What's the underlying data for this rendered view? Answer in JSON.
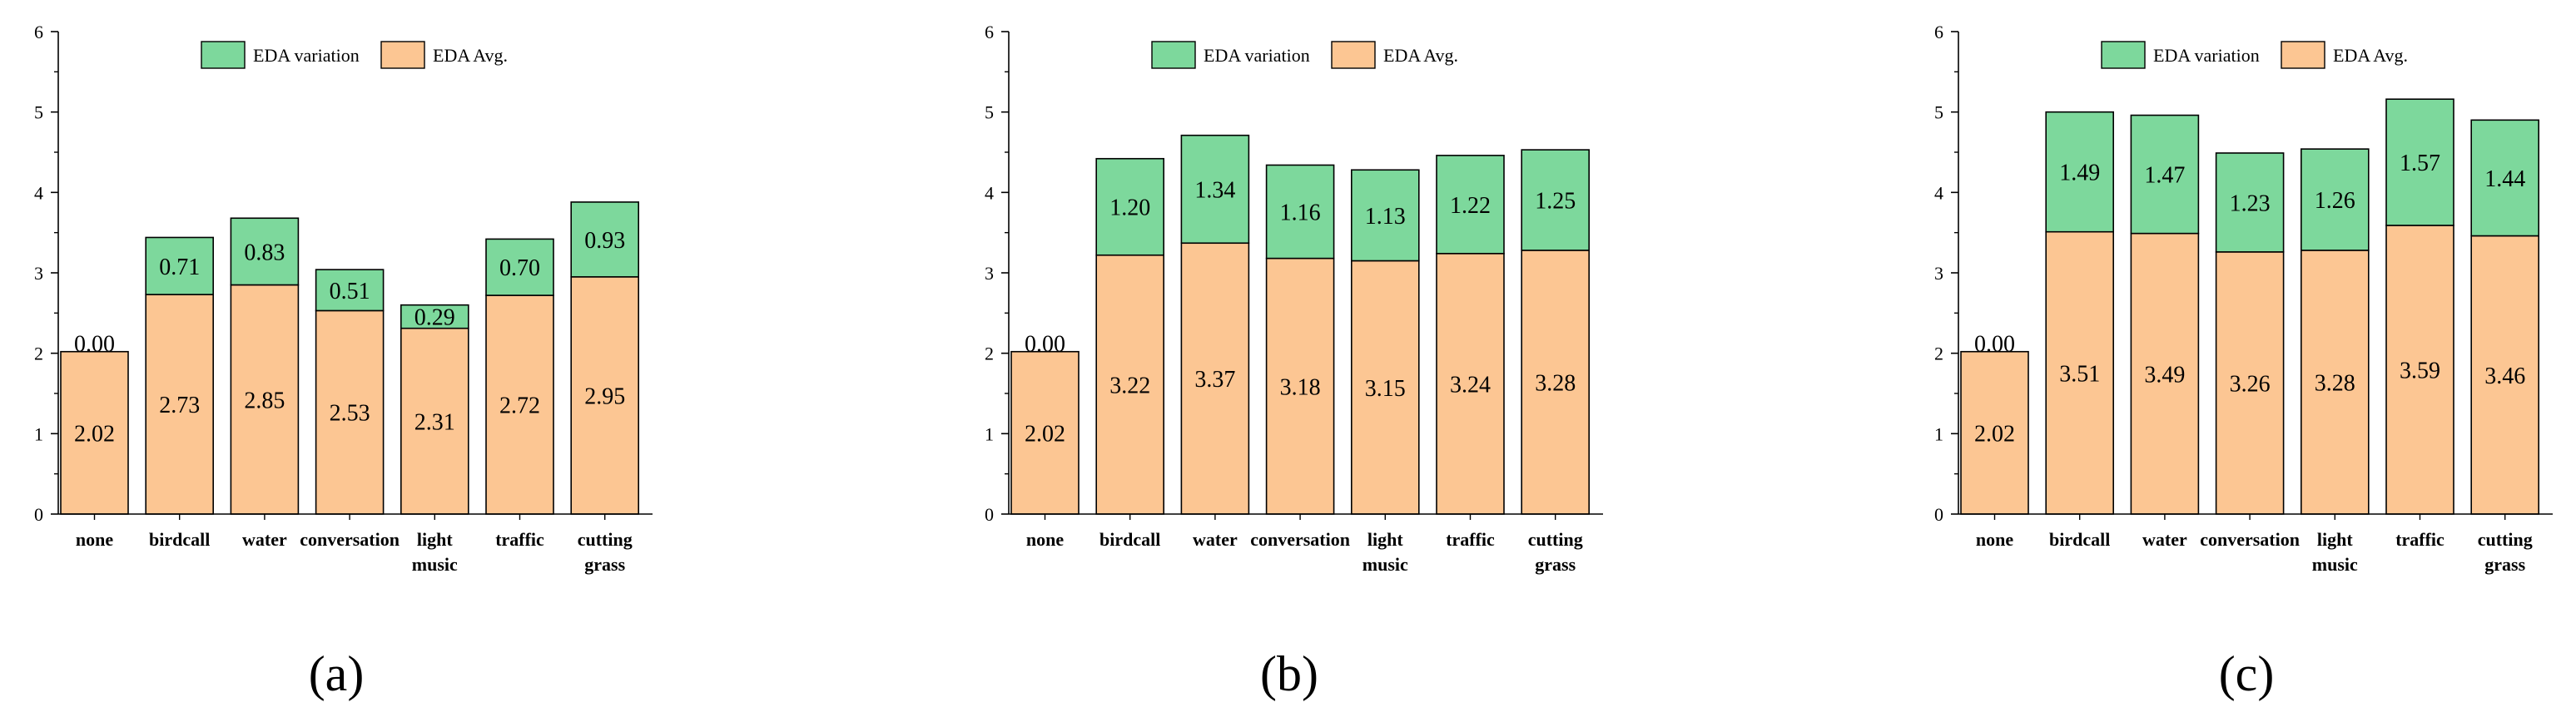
{
  "colors": {
    "avg": "#FCC693",
    "variation": "#7DD89C",
    "stroke": "#000000"
  },
  "chart_data": [
    {
      "type": "bar",
      "stacked": true,
      "panel_label": "(a)",
      "categories": [
        "none",
        "birdcall",
        "water",
        "conversation",
        "light music",
        "traffic",
        "cutting grass"
      ],
      "category_lines": [
        [
          "none"
        ],
        [
          "birdcall"
        ],
        [
          "water"
        ],
        [
          "conversation"
        ],
        [
          "light",
          "music"
        ],
        [
          "traffic"
        ],
        [
          "cutting",
          "grass"
        ]
      ],
      "series": [
        {
          "name": "EDA Avg.",
          "values": [
            2.02,
            2.73,
            2.85,
            2.53,
            2.31,
            2.72,
            2.95
          ],
          "labels": [
            "2.02",
            "2.73",
            "2.85",
            "2.53",
            "2.31",
            "2.72",
            "2.95"
          ]
        },
        {
          "name": "EDA variation",
          "values": [
            0.0,
            0.71,
            0.83,
            0.51,
            0.29,
            0.7,
            0.93
          ],
          "labels": [
            "0.00",
            "0.71",
            "0.83",
            "0.51",
            "0.29",
            "0.70",
            "0.93"
          ]
        }
      ],
      "ylim": [
        0,
        6
      ],
      "yticks": [
        "0",
        "1",
        "2",
        "3",
        "4",
        "5",
        "6"
      ],
      "legend": {
        "position": "top-center",
        "entries": [
          "EDA variation",
          "EDA Avg."
        ]
      },
      "grid": false
    },
    {
      "type": "bar",
      "stacked": true,
      "panel_label": "(b)",
      "categories": [
        "none",
        "birdcall",
        "water",
        "conversation",
        "light music",
        "traffic",
        "cutting grass"
      ],
      "category_lines": [
        [
          "none"
        ],
        [
          "birdcall"
        ],
        [
          "water"
        ],
        [
          "conversation"
        ],
        [
          "light",
          "music"
        ],
        [
          "traffic"
        ],
        [
          "cutting",
          "grass"
        ]
      ],
      "series": [
        {
          "name": "EDA Avg.",
          "values": [
            2.02,
            3.22,
            3.37,
            3.18,
            3.15,
            3.24,
            3.28
          ],
          "labels": [
            "2.02",
            "3.22",
            "3.37",
            "3.18",
            "3.15",
            "3.24",
            "3.28"
          ]
        },
        {
          "name": "EDA variation",
          "values": [
            0.0,
            1.2,
            1.34,
            1.16,
            1.13,
            1.22,
            1.25
          ],
          "labels": [
            "0.00",
            "1.20",
            "1.34",
            "1.16",
            "1.13",
            "1.22",
            "1.25"
          ]
        }
      ],
      "ylim": [
        0,
        6
      ],
      "yticks": [
        "0",
        "1",
        "2",
        "3",
        "4",
        "5",
        "6"
      ],
      "legend": {
        "position": "top-center",
        "entries": [
          "EDA variation",
          "EDA Avg."
        ]
      },
      "grid": false
    },
    {
      "type": "bar",
      "stacked": true,
      "panel_label": "(c)",
      "categories": [
        "none",
        "birdcall",
        "water",
        "conversation",
        "light music",
        "traffic",
        "cutting grass"
      ],
      "category_lines": [
        [
          "none"
        ],
        [
          "birdcall"
        ],
        [
          "water"
        ],
        [
          "conversation"
        ],
        [
          "light",
          "music"
        ],
        [
          "traffic"
        ],
        [
          "cutting",
          "grass"
        ]
      ],
      "series": [
        {
          "name": "EDA Avg.",
          "values": [
            2.02,
            3.51,
            3.49,
            3.26,
            3.28,
            3.59,
            3.46
          ],
          "labels": [
            "2.02",
            "3.51",
            "3.49",
            "3.26",
            "3.28",
            "3.59",
            "3.46"
          ]
        },
        {
          "name": "EDA variation",
          "values": [
            0.0,
            1.49,
            1.47,
            1.23,
            1.26,
            1.57,
            1.44
          ],
          "labels": [
            "0.00",
            "1.49",
            "1.47",
            "1.23",
            "1.26",
            "1.57",
            "1.44"
          ]
        }
      ],
      "ylim": [
        0,
        6
      ],
      "yticks": [
        "0",
        "1",
        "2",
        "3",
        "4",
        "5",
        "6"
      ],
      "legend": {
        "position": "top-center",
        "entries": [
          "EDA variation",
          "EDA Avg."
        ]
      },
      "grid": false
    }
  ]
}
